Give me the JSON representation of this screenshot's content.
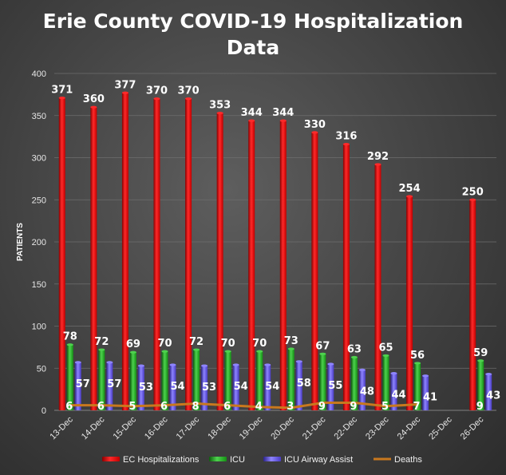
{
  "chart_data": {
    "type": "bar",
    "title_line1": "Erie County COVID-19 Hospitalization",
    "title_line2": "Data",
    "ylabel": "PATIENTS",
    "ylim": [
      0,
      400
    ],
    "yticks": [
      0,
      50,
      100,
      150,
      200,
      250,
      300,
      350,
      400
    ],
    "grid": true,
    "legend_position": "bottom",
    "categories": [
      "13-Dec",
      "14-Dec",
      "15-Dec",
      "16-Dec",
      "17-Dec",
      "18-Dec",
      "19-Dec",
      "20-Dec",
      "21-Dec",
      "22-Dec",
      "23-Dec",
      "24-Dec",
      "25-Dec",
      "26-Dec"
    ],
    "series": [
      {
        "name": "EC Hospitalizations",
        "kind": "bar",
        "color": "#ff0000",
        "values": [
          371,
          360,
          377,
          370,
          370,
          353,
          344,
          344,
          330,
          316,
          292,
          254,
          null,
          250
        ]
      },
      {
        "name": "ICU",
        "kind": "bar",
        "color": "#22b822",
        "values": [
          78,
          72,
          69,
          70,
          72,
          70,
          70,
          73,
          67,
          63,
          65,
          56,
          null,
          59
        ]
      },
      {
        "name": "ICU Airway Assist",
        "kind": "bar",
        "color": "#6a5be8",
        "values": [
          57,
          57,
          53,
          54,
          53,
          54,
          54,
          58,
          55,
          48,
          44,
          41,
          null,
          43
        ]
      },
      {
        "name": "Deaths",
        "kind": "line",
        "color": "#c8781e",
        "values": [
          6,
          6,
          5,
          6,
          8,
          6,
          4,
          3,
          9,
          9,
          5,
          7,
          null,
          9
        ]
      }
    ]
  }
}
